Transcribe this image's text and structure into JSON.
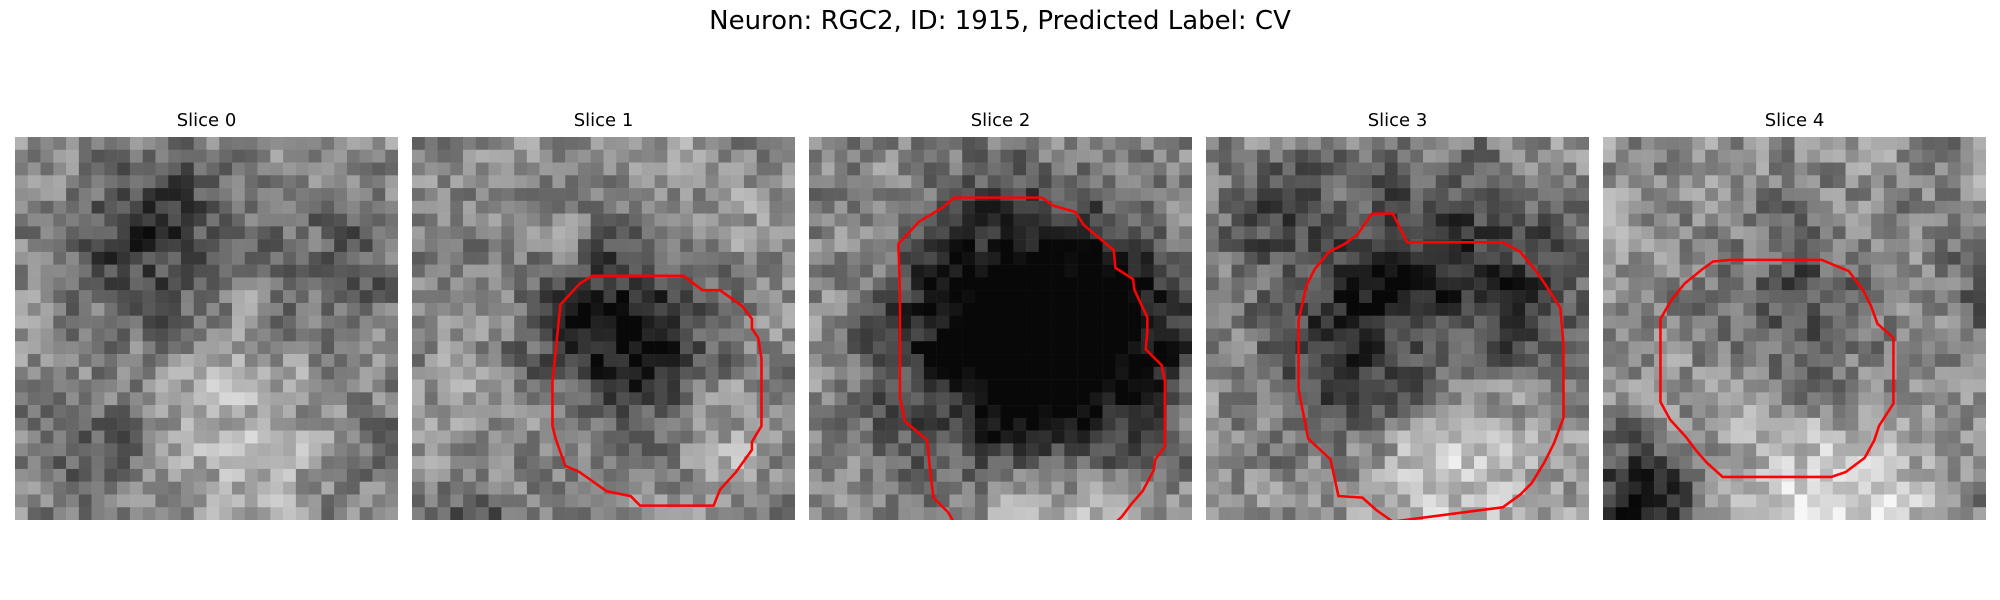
{
  "figure": {
    "title": "Neuron: RGC2, ID: 1915, Predicted Label: CV"
  },
  "slices": [
    {
      "title": "Slice 0",
      "contour": null
    },
    {
      "title": "Slice 1",
      "contour": "present"
    },
    {
      "title": "Slice 2",
      "contour": "present"
    },
    {
      "title": "Slice 3",
      "contour": "present"
    },
    {
      "title": "Slice 4",
      "contour": "present"
    }
  ],
  "colors": {
    "contour": "#ff0000",
    "colormap": "gray"
  }
}
